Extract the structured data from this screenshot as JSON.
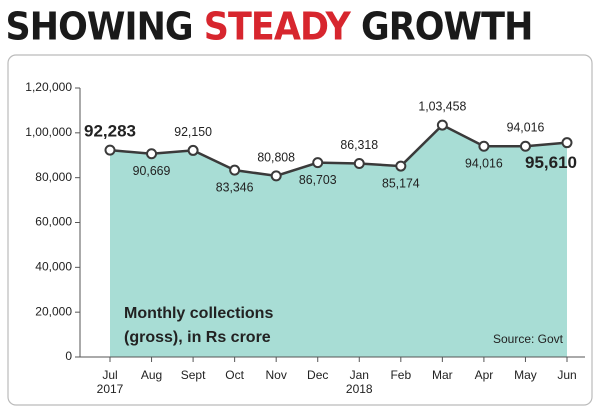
{
  "chart_data": {
    "type": "area",
    "title": [
      {
        "text": "SHOWING",
        "color": "#1a1a1a"
      },
      {
        "text": "STEADY",
        "color": "#d7262e"
      },
      {
        "text": "GROWTH",
        "color": "#1a1a1a"
      }
    ],
    "categories": [
      "Jul\n2017",
      "Aug",
      "Sept",
      "Oct",
      "Nov",
      "Dec",
      "Jan\n2018",
      "Feb",
      "Mar",
      "Apr",
      "May",
      "Jun"
    ],
    "values": [
      92283,
      90669,
      92150,
      83346,
      80808,
      86703,
      86318,
      85174,
      103458,
      94016,
      94016,
      95610
    ],
    "value_labels": [
      "92,283",
      "90,669",
      "92,150",
      "83,346",
      "80,808",
      "86,703",
      "86,318",
      "85,174",
      "1,03,458",
      "94,016",
      "94,016",
      "95,610"
    ],
    "ylim": [
      0,
      120000
    ],
    "yticks": [
      0,
      {
        "value": 20000,
        "label": "20,000"
      },
      {
        "value": 40000,
        "label": "40,000"
      },
      {
        "value": 60000,
        "label": "60,000"
      },
      {
        "value": 80000,
        "label": "80,000"
      },
      {
        "value": 100000,
        "label": "1,00,000"
      },
      {
        "value": 120000,
        "label": "1,20,000"
      }
    ],
    "color": "#a8ddd5",
    "line_color": "#3a3a3a",
    "note": [
      "Monthly collections",
      "(gross), in Rs crore"
    ],
    "source": "Source: Govt"
  }
}
